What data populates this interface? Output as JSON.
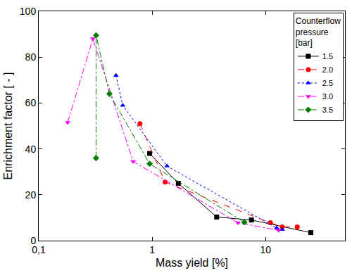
{
  "chart_data": {
    "type": "line",
    "x_label": "Mass yield [%]",
    "y_label": "Enrichment factor [ - ]",
    "legend_title": [
      "Counterflow",
      "pressure",
      "[bar]"
    ],
    "legend": "top right",
    "log": "x",
    "grid": false,
    "xlim": [
      0.1,
      50
    ],
    "xticks": [
      {
        "value": 0.1,
        "label": "0,1"
      },
      1,
      10
    ],
    "ylim": [
      0,
      100
    ],
    "yticks": [
      0,
      20,
      40,
      60,
      80,
      100
    ],
    "series": [
      {
        "name": "1.5",
        "color": "#000000",
        "marker": "square",
        "line_style": "solid",
        "x": [
          0.95,
          1.7,
          3.7,
          7.5,
          25
        ],
        "values": [
          38,
          25,
          10.3,
          9,
          3.5
        ]
      },
      {
        "name": "2.0",
        "color": "#ff0000",
        "marker": "circle",
        "line_style": "dash",
        "x": [
          0.78,
          1.3,
          11,
          14,
          19
        ],
        "values": [
          51,
          25.5,
          7.8,
          6,
          6
        ]
      },
      {
        "name": "2.5",
        "color": "#0000ff",
        "marker": "triangle-up",
        "line_style": "dot",
        "x": [
          0.48,
          0.55,
          1.35,
          12.5,
          14
        ],
        "values": [
          72,
          59,
          32.5,
          5.5,
          4.8
        ]
      },
      {
        "name": "3.0",
        "color": "#ff00ff",
        "marker": "triangle-down",
        "line_style": "dashdot",
        "x": [
          0.18,
          0.3,
          0.68,
          5.7,
          13
        ],
        "values": [
          51.5,
          88,
          34.5,
          7.8,
          4.5
        ]
      },
      {
        "name": "3.5",
        "color": "#008000",
        "marker": "diamond",
        "line_style": "dashdot",
        "x": [
          0.32,
          0.32,
          0.42,
          0.95,
          6.5
        ],
        "values": [
          36,
          89.5,
          64,
          33.5,
          8
        ]
      }
    ]
  }
}
